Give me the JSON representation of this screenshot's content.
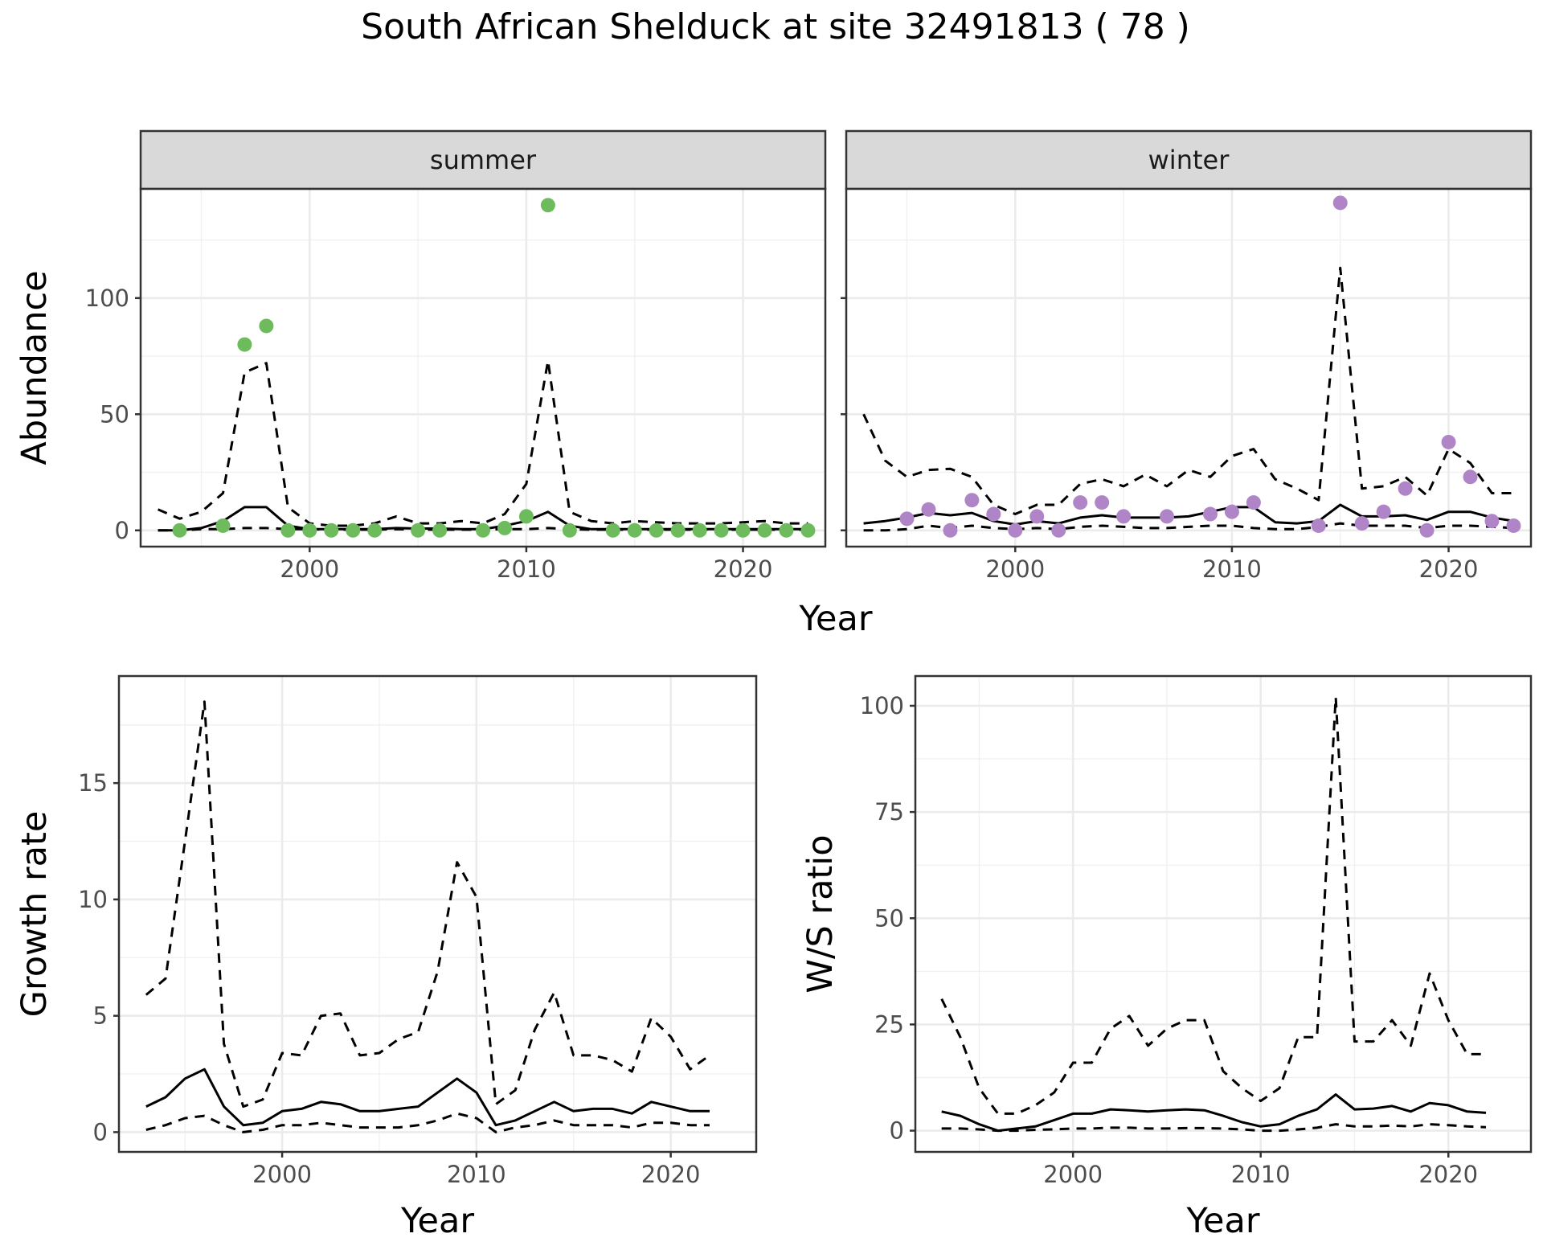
{
  "title": "South African Shelduck at site 32491813 ( 78 )",
  "chart_data": [
    {
      "id": "summer",
      "type": "line",
      "facet": "summer",
      "xlabel": "",
      "ylabel": "Abundance",
      "xlim": [
        1992.2,
        2023.8
      ],
      "ylim": [
        -7,
        147
      ],
      "x_ticks": [
        2000,
        2010,
        2020
      ],
      "y_ticks": [
        0,
        50,
        100
      ],
      "point_color": "#6dbb5c",
      "years": [
        1993,
        1994,
        1995,
        1996,
        1997,
        1998,
        1999,
        2000,
        2001,
        2002,
        2003,
        2004,
        2005,
        2006,
        2007,
        2008,
        2009,
        2010,
        2011,
        2012,
        2013,
        2014,
        2015,
        2016,
        2017,
        2018,
        2019,
        2020,
        2021,
        2022,
        2023
      ],
      "lower": [
        0,
        0,
        0.5,
        0.5,
        1,
        1,
        0.5,
        0.5,
        0.3,
        0.3,
        0.3,
        0.5,
        0.3,
        0.3,
        0.3,
        0.3,
        0.5,
        0.5,
        1,
        0.5,
        0.3,
        0.3,
        0.3,
        0.3,
        0.3,
        0.3,
        0.3,
        0.3,
        0.3,
        0.3,
        0.3
      ],
      "mean": [
        0,
        0,
        1,
        4,
        10,
        10,
        2,
        0.5,
        0.5,
        0.5,
        0.5,
        1,
        0.8,
        0.8,
        0.5,
        0.5,
        2,
        4,
        8,
        2,
        0.5,
        0.5,
        0.5,
        0.5,
        0.5,
        0.5,
        0.5,
        0.5,
        0.5,
        0.5,
        0.5
      ],
      "upper": [
        9,
        5,
        8,
        16,
        68,
        72,
        10,
        3,
        2,
        2,
        3,
        6,
        3,
        3,
        4,
        3,
        7,
        20,
        73,
        8,
        4,
        3,
        4,
        3.5,
        3,
        3,
        3,
        3.5,
        4,
        3,
        3
      ],
      "observed": [
        {
          "x": 1994,
          "y": 0
        },
        {
          "x": 1996,
          "y": 2
        },
        {
          "x": 1997,
          "y": 80
        },
        {
          "x": 1998,
          "y": 88
        },
        {
          "x": 1999,
          "y": 0
        },
        {
          "x": 2000,
          "y": 0
        },
        {
          "x": 2001,
          "y": 0
        },
        {
          "x": 2002,
          "y": 0
        },
        {
          "x": 2003,
          "y": 0
        },
        {
          "x": 2005,
          "y": 0
        },
        {
          "x": 2006,
          "y": 0
        },
        {
          "x": 2008,
          "y": 0
        },
        {
          "x": 2009,
          "y": 1
        },
        {
          "x": 2010,
          "y": 6
        },
        {
          "x": 2011,
          "y": 140
        },
        {
          "x": 2012,
          "y": 0
        },
        {
          "x": 2014,
          "y": 0
        },
        {
          "x": 2015,
          "y": 0
        },
        {
          "x": 2016,
          "y": 0
        },
        {
          "x": 2017,
          "y": 0
        },
        {
          "x": 2018,
          "y": 0
        },
        {
          "x": 2019,
          "y": 0
        },
        {
          "x": 2020,
          "y": 0
        },
        {
          "x": 2021,
          "y": 0
        },
        {
          "x": 2022,
          "y": 0
        },
        {
          "x": 2023,
          "y": 0
        }
      ]
    },
    {
      "id": "winter",
      "type": "line",
      "facet": "winter",
      "xlabel": "Year",
      "ylabel": "",
      "xlim": [
        1992.2,
        2023.8
      ],
      "ylim": [
        -7,
        147
      ],
      "x_ticks": [
        2000,
        2010,
        2020
      ],
      "y_ticks": [
        0,
        50,
        100
      ],
      "point_color": "#b085c8",
      "years": [
        1993,
        1994,
        1995,
        1996,
        1997,
        1998,
        1999,
        2000,
        2001,
        2002,
        2003,
        2004,
        2005,
        2006,
        2007,
        2008,
        2009,
        2010,
        2011,
        2012,
        2013,
        2014,
        2015,
        2016,
        2017,
        2018,
        2019,
        2020,
        2021,
        2022,
        2023
      ],
      "lower": [
        0,
        0,
        0.5,
        2,
        1,
        2,
        1,
        0.5,
        1,
        0.5,
        1.5,
        2,
        1.5,
        1,
        1,
        1.5,
        2,
        2,
        1,
        0.5,
        0.5,
        1.5,
        3,
        2,
        2,
        2,
        1,
        2,
        2,
        1.5,
        1
      ],
      "mean": [
        3,
        4,
        5.5,
        7.5,
        6.5,
        7.5,
        4,
        2.5,
        4,
        3,
        5.5,
        6.5,
        5.5,
        5.5,
        5.5,
        6,
        8,
        10,
        10,
        3.5,
        3,
        4,
        11,
        6,
        6,
        6.5,
        4.5,
        8,
        8,
        5.5,
        4
      ],
      "upper": [
        50,
        30,
        23,
        26,
        26.5,
        23,
        11,
        7,
        11,
        11,
        20,
        22,
        19,
        24,
        19,
        26,
        23,
        32,
        35,
        22,
        18,
        13,
        113,
        18,
        19,
        23,
        15,
        35,
        29,
        16,
        16
      ],
      "observed": [
        {
          "x": 1995,
          "y": 5
        },
        {
          "x": 1996,
          "y": 9
        },
        {
          "x": 1997,
          "y": 0
        },
        {
          "x": 1998,
          "y": 13
        },
        {
          "x": 1999,
          "y": 7
        },
        {
          "x": 2000,
          "y": 0
        },
        {
          "x": 2001,
          "y": 6
        },
        {
          "x": 2002,
          "y": 0
        },
        {
          "x": 2003,
          "y": 12
        },
        {
          "x": 2004,
          "y": 12
        },
        {
          "x": 2005,
          "y": 6
        },
        {
          "x": 2007,
          "y": 6
        },
        {
          "x": 2009,
          "y": 7
        },
        {
          "x": 2010,
          "y": 8
        },
        {
          "x": 2011,
          "y": 12
        },
        {
          "x": 2014,
          "y": 2
        },
        {
          "x": 2015,
          "y": 141
        },
        {
          "x": 2016,
          "y": 3
        },
        {
          "x": 2017,
          "y": 8
        },
        {
          "x": 2018,
          "y": 18
        },
        {
          "x": 2019,
          "y": 0
        },
        {
          "x": 2020,
          "y": 38
        },
        {
          "x": 2021,
          "y": 23
        },
        {
          "x": 2022,
          "y": 4
        },
        {
          "x": 2023,
          "y": 2
        }
      ]
    },
    {
      "id": "growth",
      "type": "line",
      "xlabel": "Year",
      "ylabel": "Growth rate",
      "xlim": [
        1991.6,
        2024.4
      ],
      "ylim": [
        -0.85,
        19.6
      ],
      "x_ticks": [
        2000,
        2010,
        2020
      ],
      "y_ticks": [
        0,
        5,
        10,
        15
      ],
      "years": [
        1993,
        1994,
        1995,
        1996,
        1997,
        1998,
        1999,
        2000,
        2001,
        2002,
        2003,
        2004,
        2005,
        2006,
        2007,
        2008,
        2009,
        2010,
        2011,
        2012,
        2013,
        2014,
        2015,
        2016,
        2017,
        2018,
        2019,
        2020,
        2021,
        2022
      ],
      "lower": [
        0.1,
        0.3,
        0.6,
        0.7,
        0.3,
        0,
        0.1,
        0.3,
        0.3,
        0.4,
        0.3,
        0.2,
        0.2,
        0.2,
        0.3,
        0.5,
        0.8,
        0.6,
        0,
        0.2,
        0.3,
        0.5,
        0.3,
        0.3,
        0.3,
        0.2,
        0.4,
        0.4,
        0.3,
        0.3
      ],
      "mean": [
        1.1,
        1.5,
        2.3,
        2.7,
        1.1,
        0.3,
        0.4,
        0.9,
        1.0,
        1.3,
        1.2,
        0.9,
        0.9,
        1.0,
        1.1,
        1.7,
        2.3,
        1.7,
        0.3,
        0.5,
        0.9,
        1.3,
        0.9,
        1.0,
        1.0,
        0.8,
        1.3,
        1.1,
        0.9,
        0.9
      ],
      "upper": [
        5.9,
        6.6,
        12.5,
        18.5,
        3.8,
        1.1,
        1.4,
        3.4,
        3.3,
        5.0,
        5.1,
        3.3,
        3.4,
        4.0,
        4.3,
        6.9,
        11.6,
        10.1,
        1.2,
        1.8,
        4.4,
        6.0,
        3.3,
        3.3,
        3.1,
        2.6,
        4.9,
        4.1,
        2.7,
        3.3
      ]
    },
    {
      "id": "ratio",
      "type": "line",
      "xlabel": "Year",
      "ylabel": "W/S ratio",
      "xlim": [
        1991.6,
        2024.4
      ],
      "ylim": [
        -5,
        107
      ],
      "x_ticks": [
        2000,
        2010,
        2020
      ],
      "y_ticks": [
        0,
        25,
        50,
        75,
        100
      ],
      "years": [
        1993,
        1994,
        1995,
        1996,
        1997,
        1998,
        1999,
        2000,
        2001,
        2002,
        2003,
        2004,
        2005,
        2006,
        2007,
        2008,
        2009,
        2010,
        2011,
        2012,
        2013,
        2014,
        2015,
        2016,
        2017,
        2018,
        2019,
        2020,
        2021,
        2022
      ],
      "lower": [
        0.5,
        0.5,
        0.3,
        0,
        0,
        0.2,
        0.3,
        0.5,
        0.5,
        0.7,
        0.7,
        0.5,
        0.5,
        0.6,
        0.6,
        0.5,
        0.3,
        0,
        0,
        0.3,
        0.7,
        1.5,
        1,
        1,
        1.2,
        1,
        1.5,
        1.3,
        1,
        0.8
      ],
      "mean": [
        4.5,
        3.5,
        1.5,
        0,
        0.5,
        1,
        2.5,
        4,
        4,
        5,
        4.8,
        4.5,
        4.8,
        5,
        4.8,
        3.5,
        2,
        1,
        1.5,
        3.5,
        5,
        8.5,
        5,
        5.2,
        5.8,
        4.5,
        6.5,
        6,
        4.5,
        4.2
      ],
      "upper": [
        31,
        22,
        10,
        4,
        4,
        6,
        9,
        16,
        16,
        24,
        27,
        20,
        24,
        26,
        26,
        14,
        10,
        7,
        10,
        22,
        22,
        102,
        21,
        21,
        26,
        20,
        37,
        26,
        18,
        18
      ]
    }
  ]
}
